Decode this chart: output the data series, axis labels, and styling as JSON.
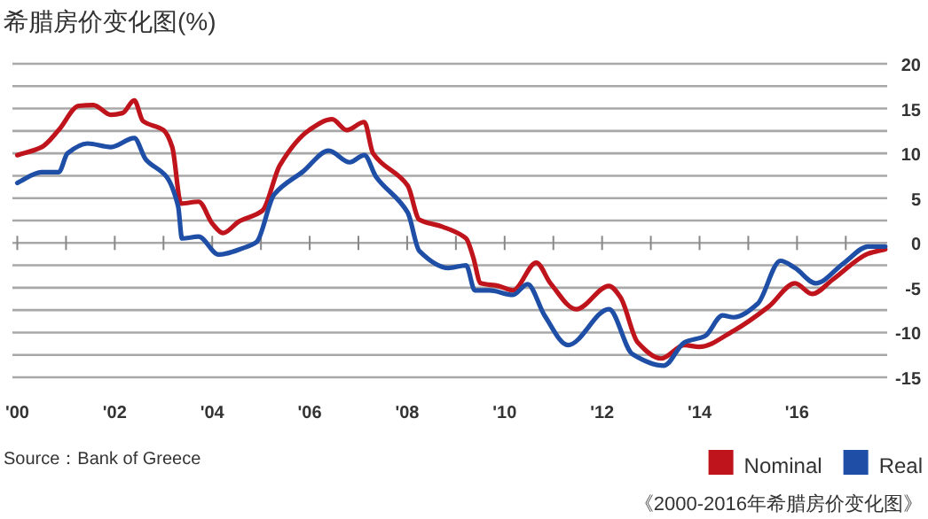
{
  "chart_data": {
    "type": "line",
    "title": "希腊房价变化图(%)",
    "series": [
      {
        "name": "Nominal",
        "color": "#c0141c",
        "x": [
          2000.0,
          2000.5,
          2000.85,
          2001.26,
          2001.56,
          2001.92,
          2002.16,
          2002.4,
          2002.58,
          2003.0,
          2003.18,
          2003.36,
          2003.72,
          2004.01,
          2004.22,
          2004.55,
          2005.03,
          2005.39,
          2005.99,
          2006.46,
          2006.76,
          2007.12,
          2007.3,
          2008.01,
          2008.25,
          2008.73,
          2009.21,
          2009.35,
          2009.51,
          2009.87,
          2010.17,
          2010.65,
          2010.94,
          2011.47,
          2012.14,
          2012.38,
          2012.73,
          2013.21,
          2013.69,
          2013.99,
          2014.7,
          2015.42,
          2015.96,
          2016.31,
          2016.73,
          2017.46,
          2017.81
        ],
        "values": [
          9.8,
          10.7,
          12.6,
          15.3,
          15.4,
          14.3,
          14.5,
          15.9,
          13.6,
          12.6,
          10.7,
          4.4,
          4.6,
          2.1,
          1.1,
          2.4,
          3.6,
          8.7,
          12.6,
          13.8,
          12.6,
          13.5,
          10.0,
          6.4,
          2.6,
          1.8,
          0.5,
          -1.5,
          -4.5,
          -4.8,
          -5.3,
          -2.2,
          -4.5,
          -7.4,
          -4.8,
          -6.1,
          -11.1,
          -12.9,
          -11.4,
          -11.6,
          -9.8,
          -7.1,
          -4.5,
          -5.7,
          -4.1,
          -1.2,
          -0.7
        ]
      },
      {
        "name": "Real",
        "color": "#1f4ea6",
        "x": [
          2000.0,
          2000.5,
          2000.85,
          2001.03,
          2001.44,
          2001.92,
          2002.4,
          2002.64,
          2003.06,
          2003.3,
          2003.38,
          2003.72,
          2004.13,
          2004.67,
          2004.91,
          2005.27,
          2005.87,
          2006.39,
          2006.82,
          2007.12,
          2007.36,
          2008.01,
          2008.25,
          2008.85,
          2009.21,
          2009.39,
          2009.69,
          2010.17,
          2010.47,
          2010.82,
          2011.3,
          2012.14,
          2012.62,
          2013.27,
          2013.69,
          2014.11,
          2014.47,
          2014.7,
          2015.19,
          2015.66,
          2015.96,
          2016.38,
          2016.97,
          2017.46,
          2017.81
        ],
        "values": [
          6.7,
          7.9,
          7.9,
          10.0,
          11.1,
          10.7,
          11.7,
          9.3,
          7.4,
          4.1,
          0.5,
          0.7,
          -1.3,
          -0.5,
          0.1,
          5.4,
          8.0,
          10.3,
          9.0,
          9.8,
          7.4,
          3.4,
          -0.9,
          -2.8,
          -2.5,
          -5.3,
          -5.3,
          -5.8,
          -4.6,
          -8.1,
          -11.4,
          -7.4,
          -12.4,
          -13.7,
          -11.1,
          -10.4,
          -8.1,
          -8.3,
          -6.8,
          -2.0,
          -2.8,
          -4.5,
          -2.2,
          -0.4,
          -0.4
        ]
      }
    ],
    "xlim": [
      1999.9,
      2017.85
    ],
    "xticks": [
      {
        "value": 2000,
        "label": "'00"
      },
      {
        "value": 2001,
        "label": null
      },
      {
        "value": 2002,
        "label": "'02"
      },
      {
        "value": 2003,
        "label": null
      },
      {
        "value": 2004,
        "label": "'04"
      },
      {
        "value": 2005,
        "label": null
      },
      {
        "value": 2006,
        "label": "'06"
      },
      {
        "value": 2007,
        "label": null
      },
      {
        "value": 2008,
        "label": "'08"
      },
      {
        "value": 2009,
        "label": null
      },
      {
        "value": 2010,
        "label": "'10"
      },
      {
        "value": 2011,
        "label": null
      },
      {
        "value": 2012,
        "label": "'12"
      },
      {
        "value": 2013,
        "label": null
      },
      {
        "value": 2014,
        "label": "'14"
      },
      {
        "value": 2015,
        "label": null
      },
      {
        "value": 2016,
        "label": "'16"
      },
      {
        "value": 2017,
        "label": null
      }
    ],
    "ylim": [
      -15,
      20
    ],
    "yticks": [
      -15,
      {
        "value": -12.5,
        "label": null
      },
      -10,
      {
        "value": -7.5,
        "label": null
      },
      -5,
      {
        "value": -2.5,
        "label": null
      },
      0,
      {
        "value": 2.5,
        "label": null
      },
      5,
      {
        "value": 7.5,
        "label": null
      },
      10,
      {
        "value": 12.5,
        "label": null
      },
      15,
      {
        "value": 17.5,
        "label": null
      },
      20
    ],
    "grid": "y",
    "legend": "bottom right",
    "marker": "none",
    "line_style": "solid",
    "annotations": [
      "Source：Bank of Greece",
      "《2000-2016年希腊房价变化图》"
    ]
  }
}
